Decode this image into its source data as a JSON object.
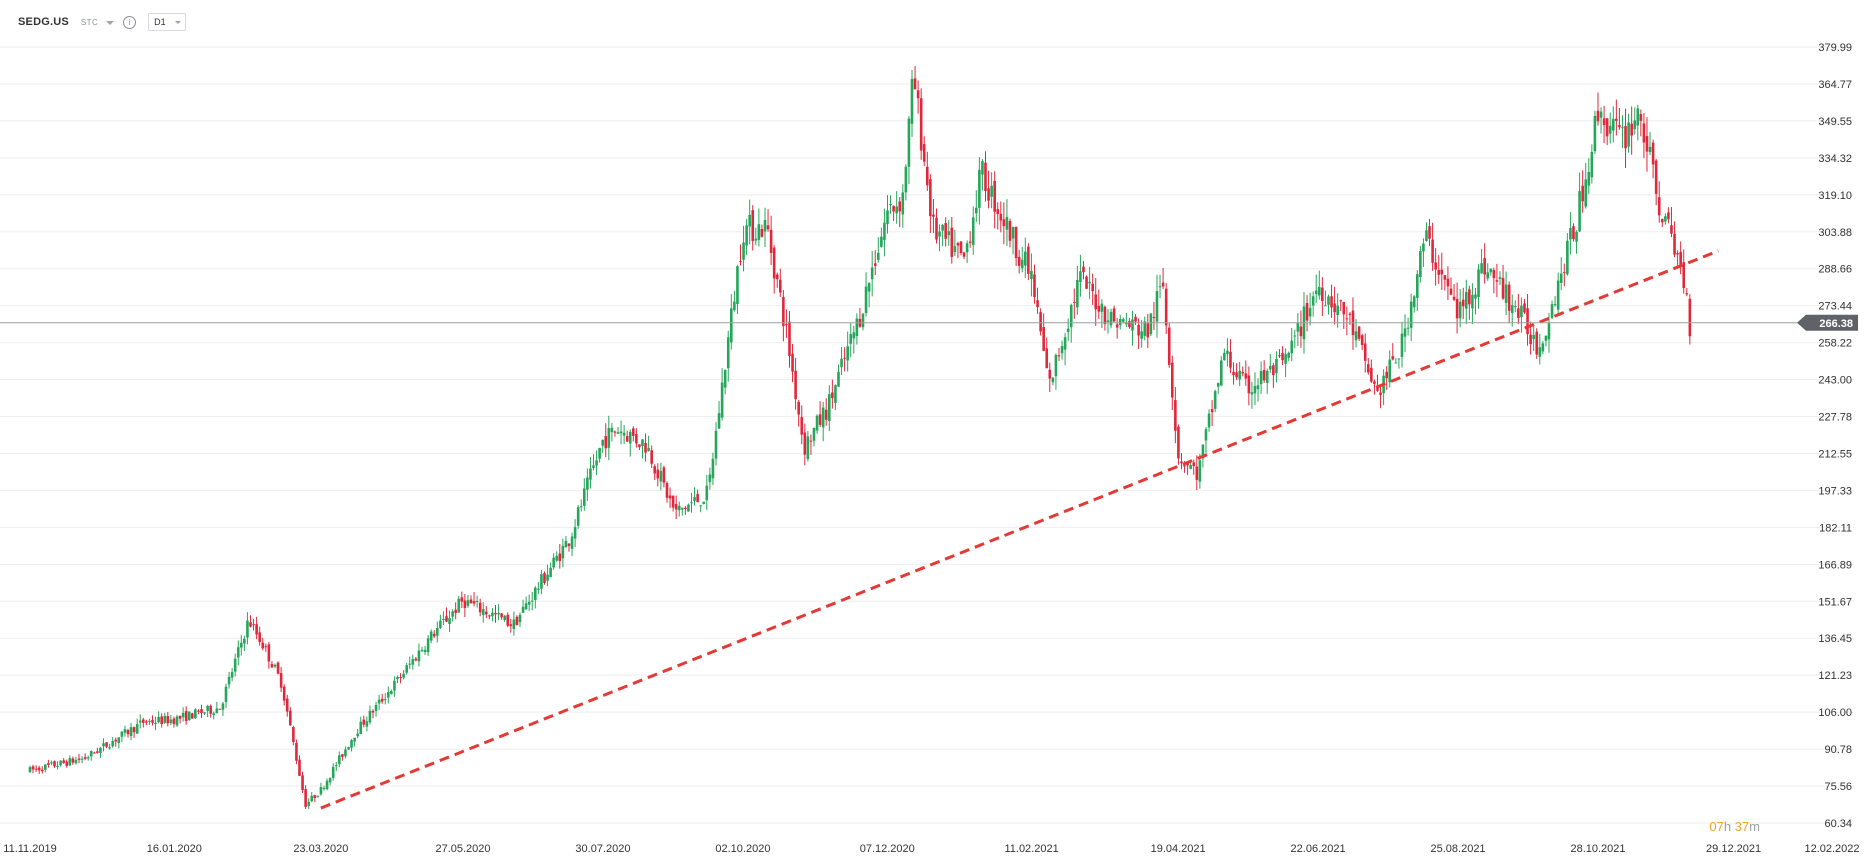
{
  "header": {
    "symbol": "SEDG.US",
    "market": "STC",
    "timeframe": "D1"
  },
  "timer": {
    "hours": "07",
    "hours_unit": "h",
    "minutes": "37",
    "minutes_unit": "m"
  },
  "colors": {
    "up": "#26a65b",
    "down": "#e0273c",
    "trendline": "#e53935",
    "grid": "#eeeeee",
    "price_line": "#9e9e9e",
    "price_tag": "#5f6368"
  },
  "chart_data": {
    "type": "candlestick",
    "title": "",
    "current_price": "266.38",
    "y_ticks": [
      "379.99",
      "364.77",
      "349.55",
      "334.32",
      "319.10",
      "303.88",
      "288.66",
      "273.44",
      "258.22",
      "243.00",
      "227.78",
      "212.55",
      "197.33",
      "182.11",
      "166.89",
      "151.67",
      "136.45",
      "121.23",
      "106.00",
      "90.78",
      "75.56",
      "60.34"
    ],
    "x_ticks": [
      "11.11.2019",
      "16.01.2020",
      "23.03.2020",
      "27.05.2020",
      "30.07.2020",
      "02.10.2020",
      "07.12.2020",
      "11.02.2021",
      "19.04.2021",
      "22.06.2021",
      "25.08.2021",
      "28.10.2021",
      "29.12.2021",
      "12.02.2022"
    ],
    "ylim": [
      60.34,
      379.99
    ],
    "close_path": [
      [
        "11.11.2019",
        82
      ],
      [
        "06.12.2019",
        87
      ],
      [
        "02.01.2020",
        102
      ],
      [
        "16.01.2020",
        103
      ],
      [
        "06.02.2020",
        108
      ],
      [
        "19.02.2020",
        144
      ],
      [
        "26.02.2020",
        133
      ],
      [
        "05.03.2020",
        118
      ],
      [
        "16.03.2020",
        68
      ],
      [
        "23.03.2020",
        74
      ],
      [
        "08.04.2020",
        98
      ],
      [
        "27.04.2020",
        119
      ],
      [
        "13.05.2020",
        138
      ],
      [
        "27.05.2020",
        152
      ],
      [
        "10.06.2020",
        146
      ],
      [
        "19.06.2020",
        142
      ],
      [
        "15.07.2020",
        178
      ],
      [
        "30.07.2020",
        218
      ],
      [
        "06.08.2020",
        223
      ],
      [
        "19.08.2020",
        216
      ],
      [
        "01.09.2020",
        188
      ],
      [
        "16.09.2020",
        196
      ],
      [
        "02.10.2020",
        305
      ],
      [
        "13.10.2020",
        306
      ],
      [
        "22.10.2020",
        262
      ],
      [
        "30.10.2020",
        215
      ],
      [
        "10.11.2020",
        232
      ],
      [
        "24.11.2020",
        268
      ],
      [
        "07.12.2020",
        312
      ],
      [
        "14.12.2020",
        318
      ],
      [
        "19.12.2020",
        368
      ],
      [
        "28.12.2020",
        305
      ],
      [
        "11.01.2021",
        292
      ],
      [
        "19.01.2021",
        328
      ],
      [
        "11.02.2021",
        285
      ],
      [
        "19.02.2021",
        240
      ],
      [
        "05.03.2021",
        285
      ],
      [
        "19.03.2021",
        268
      ],
      [
        "05.04.2021",
        263
      ],
      [
        "12.04.2021",
        283
      ],
      [
        "19.04.2021",
        212
      ],
      [
        "28.04.2021",
        204
      ],
      [
        "10.05.2021",
        254
      ],
      [
        "20.05.2021",
        239
      ],
      [
        "07.06.2021",
        250
      ],
      [
        "22.06.2021",
        282
      ],
      [
        "06.07.2021",
        268
      ],
      [
        "19.07.2021",
        237
      ],
      [
        "30.07.2021",
        256
      ],
      [
        "10.08.2021",
        302
      ],
      [
        "25.08.2021",
        270
      ],
      [
        "06.09.2021",
        290
      ],
      [
        "20.09.2021",
        273
      ],
      [
        "01.10.2021",
        256
      ],
      [
        "18.10.2021",
        308
      ],
      [
        "28.10.2021",
        353
      ],
      [
        "08.11.2021",
        342
      ],
      [
        "16.11.2021",
        354
      ],
      [
        "24.11.2021",
        318
      ],
      [
        "06.12.2021",
        286
      ],
      [
        "09.12.2021",
        266
      ]
    ],
    "trendline": {
      "style": "dashed",
      "from": [
        "23.03.2020",
        66.5
      ],
      "to": [
        "22.12.2021",
        296
      ]
    }
  }
}
